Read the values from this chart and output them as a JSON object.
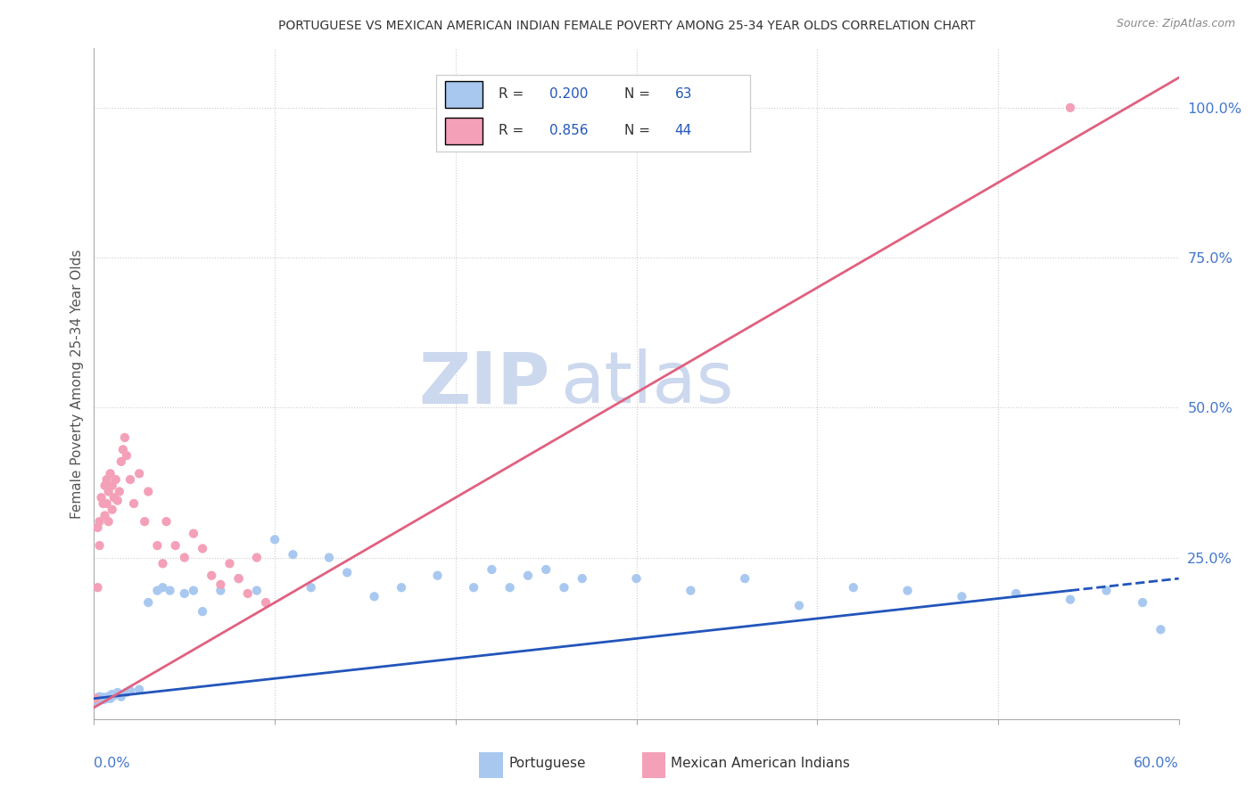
{
  "title": "PORTUGUESE VS MEXICAN AMERICAN INDIAN FEMALE POVERTY AMONG 25-34 YEAR OLDS CORRELATION CHART",
  "source": "Source: ZipAtlas.com",
  "ylabel": "Female Poverty Among 25-34 Year Olds",
  "xlim": [
    0.0,
    0.6
  ],
  "ylim": [
    -0.02,
    1.1
  ],
  "ytick_positions": [
    0.25,
    0.5,
    0.75,
    1.0
  ],
  "ytick_labels": [
    "25.0%",
    "50.0%",
    "75.0%",
    "100.0%"
  ],
  "portuguese_R": 0.2,
  "portuguese_N": 63,
  "mexican_R": 0.856,
  "mexican_N": 44,
  "portuguese_color": "#a8c8f0",
  "portuguese_line_color": "#2255bb",
  "mexican_color": "#f4a0b8",
  "mexican_line_color": "#e06080",
  "watermark_zip": "ZIP",
  "watermark_atlas": "atlas",
  "watermark_color": "#ccd8ee",
  "legend_R_color": "#2255bb",
  "legend_N_color": "#2255bb",
  "background_color": "#ffffff",
  "grid_color": "#cccccc",
  "title_color": "#333333",
  "axis_label_color": "#555555",
  "tick_color": "#4477cc",
  "port_line_x0": 0.0,
  "port_line_y0": 0.015,
  "port_line_x1": 0.54,
  "port_line_y1": 0.195,
  "port_line_dash_x1": 0.6,
  "port_line_dash_y1": 0.215,
  "mex_line_x0": 0.0,
  "mex_line_y0": 0.0,
  "mex_line_x1": 0.6,
  "mex_line_y1": 1.05,
  "portuguese_x": [
    0.001,
    0.002,
    0.002,
    0.003,
    0.003,
    0.004,
    0.004,
    0.005,
    0.005,
    0.006,
    0.006,
    0.007,
    0.007,
    0.008,
    0.008,
    0.009,
    0.009,
    0.01,
    0.01,
    0.011,
    0.012,
    0.013,
    0.015,
    0.018,
    0.02,
    0.025,
    0.03,
    0.035,
    0.038,
    0.042,
    0.05,
    0.055,
    0.06,
    0.07,
    0.08,
    0.09,
    0.1,
    0.11,
    0.12,
    0.13,
    0.14,
    0.155,
    0.17,
    0.19,
    0.21,
    0.23,
    0.25,
    0.27,
    0.3,
    0.33,
    0.36,
    0.39,
    0.42,
    0.45,
    0.48,
    0.51,
    0.54,
    0.56,
    0.58,
    0.59,
    0.22,
    0.24,
    0.26
  ],
  "portuguese_y": [
    0.015,
    0.01,
    0.015,
    0.012,
    0.018,
    0.014,
    0.016,
    0.013,
    0.017,
    0.014,
    0.016,
    0.015,
    0.017,
    0.016,
    0.018,
    0.015,
    0.02,
    0.018,
    0.022,
    0.02,
    0.022,
    0.025,
    0.018,
    0.025,
    0.028,
    0.03,
    0.175,
    0.195,
    0.2,
    0.195,
    0.19,
    0.195,
    0.16,
    0.195,
    0.215,
    0.195,
    0.28,
    0.255,
    0.2,
    0.25,
    0.225,
    0.185,
    0.2,
    0.22,
    0.2,
    0.2,
    0.23,
    0.215,
    0.215,
    0.195,
    0.215,
    0.17,
    0.2,
    0.195,
    0.185,
    0.19,
    0.18,
    0.195,
    0.175,
    0.13,
    0.23,
    0.22,
    0.2
  ],
  "mexican_x": [
    0.001,
    0.002,
    0.002,
    0.003,
    0.003,
    0.004,
    0.005,
    0.006,
    0.006,
    0.007,
    0.007,
    0.008,
    0.008,
    0.009,
    0.01,
    0.01,
    0.011,
    0.012,
    0.013,
    0.014,
    0.015,
    0.016,
    0.017,
    0.018,
    0.02,
    0.022,
    0.025,
    0.028,
    0.03,
    0.035,
    0.038,
    0.04,
    0.045,
    0.05,
    0.055,
    0.06,
    0.065,
    0.07,
    0.075,
    0.08,
    0.085,
    0.09,
    0.095,
    0.54
  ],
  "mexican_y": [
    0.015,
    0.2,
    0.3,
    0.27,
    0.31,
    0.35,
    0.34,
    0.32,
    0.37,
    0.34,
    0.38,
    0.31,
    0.36,
    0.39,
    0.33,
    0.37,
    0.35,
    0.38,
    0.345,
    0.36,
    0.41,
    0.43,
    0.45,
    0.42,
    0.38,
    0.34,
    0.39,
    0.31,
    0.36,
    0.27,
    0.24,
    0.31,
    0.27,
    0.25,
    0.29,
    0.265,
    0.22,
    0.205,
    0.24,
    0.215,
    0.19,
    0.25,
    0.175,
    1.0
  ]
}
